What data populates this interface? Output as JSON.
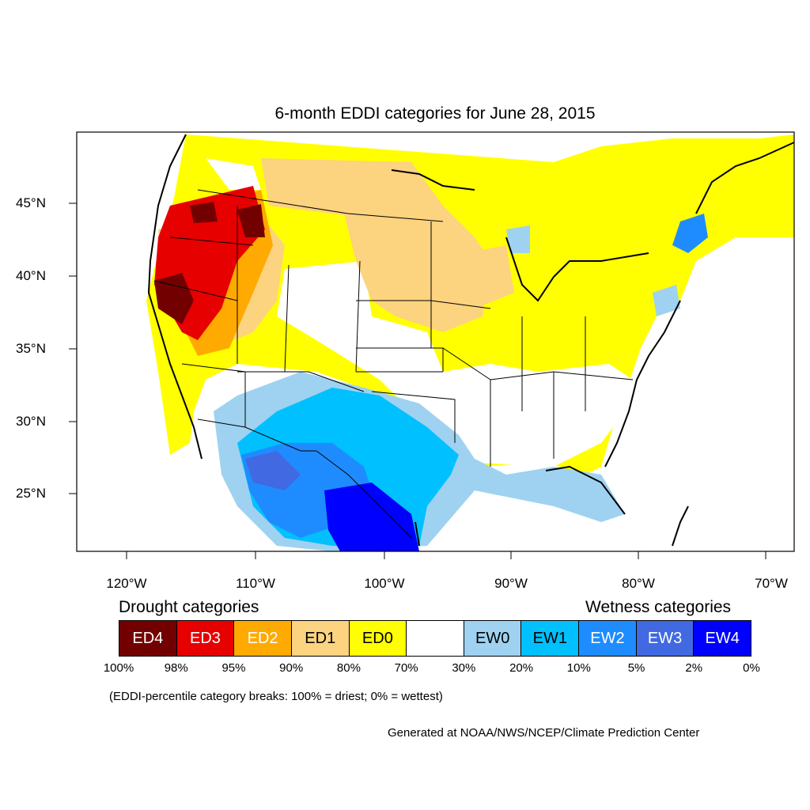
{
  "title": "6-month EDDI categories for June 28, 2015",
  "axes": {
    "lat_labels": [
      "45°N",
      "40°N",
      "35°N",
      "30°N",
      "25°N"
    ],
    "lon_labels": [
      "120°W",
      "110°W",
      "100°W",
      "90°W",
      "80°W",
      "70°W"
    ]
  },
  "legend": {
    "drought_heading": "Drought categories",
    "wetness_heading": "Wetness categories",
    "categories": [
      {
        "label": "ED4",
        "color": "#730000",
        "text_color": "#ffffff"
      },
      {
        "label": "ED3",
        "color": "#e60000",
        "text_color": "#ffffff"
      },
      {
        "label": "ED2",
        "color": "#ffaa00",
        "text_color": "#ffffff"
      },
      {
        "label": "ED1",
        "color": "#fcd37f",
        "text_color": "#000000"
      },
      {
        "label": "ED0",
        "color": "#ffff00",
        "text_color": "#000000"
      },
      {
        "label": "",
        "color": "#ffffff",
        "text_color": "#000000"
      },
      {
        "label": "EW0",
        "color": "#9ed2f0",
        "text_color": "#000000"
      },
      {
        "label": "EW1",
        "color": "#00c0ff",
        "text_color": "#000000"
      },
      {
        "label": "EW2",
        "color": "#1e8cff",
        "text_color": "#ffffff"
      },
      {
        "label": "EW3",
        "color": "#4169e1",
        "text_color": "#ffffff"
      },
      {
        "label": "EW4",
        "color": "#0000ff",
        "text_color": "#ffffff"
      }
    ],
    "breaks": [
      "100%",
      "98%",
      "95%",
      "90%",
      "80%",
      "70%",
      "30%",
      "20%",
      "10%",
      "5%",
      "2%",
      "0%"
    ]
  },
  "note": "(EDDI-percentile category breaks: 100% = driest; 0% = wettest)",
  "credit": "Generated at NOAA/NWS/NCEP/Climate Prediction Center"
}
